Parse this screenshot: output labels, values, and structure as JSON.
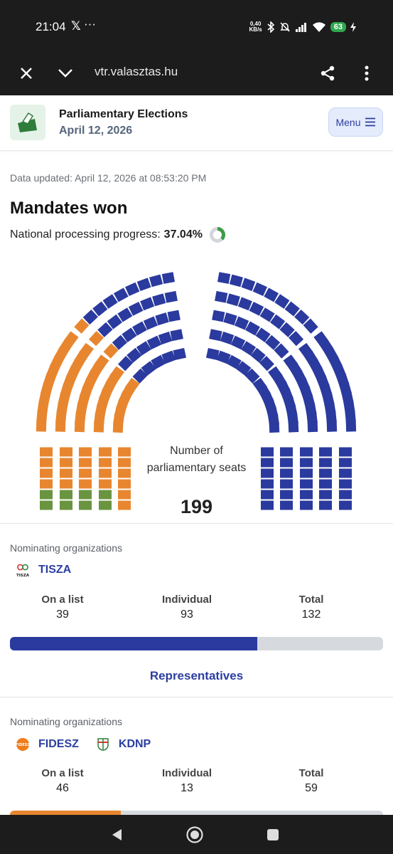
{
  "status_bar": {
    "time": "21:04",
    "x_app": "𝕏",
    "dots": "···",
    "net_speed_value": "0,40",
    "net_speed_unit": "KB/s",
    "battery": "63"
  },
  "browser": {
    "url": "vtr.valasztas.hu",
    "icons": [
      "close-icon",
      "chevron-down-icon",
      "share-icon",
      "more-vert-icon"
    ]
  },
  "header": {
    "title": "Parliamentary Elections",
    "date": "April 12, 2026",
    "menu_label": "Menu"
  },
  "updated": "Data updated: April 12, 2026 at 08:53:20 PM",
  "section_title": "Mandates won",
  "progress": {
    "label": "National processing progress:",
    "value": "37.04%",
    "fraction": 0.3704
  },
  "seat_chart": {
    "label": "Number of parliamentary seats",
    "total": "199",
    "colors": {
      "tisza": "#2b3a9e",
      "fidesz": "#e8862f",
      "kdnp": "#6a9440"
    }
  },
  "parties": [
    {
      "org_label": "Nominating organizations",
      "names": [
        "TISZA"
      ],
      "logo_texts": [
        "TISZA"
      ],
      "stats": [
        {
          "label": "On a list",
          "value": "39"
        },
        {
          "label": "Individual",
          "value": "93"
        },
        {
          "label": "Total",
          "value": "132"
        }
      ],
      "share": 0.6633,
      "color": "#2b3a9e",
      "link": "Representatives"
    },
    {
      "org_label": "Nominating organizations",
      "names": [
        "FIDESZ",
        "KDNP"
      ],
      "logo_texts": [
        "FIDESZ"
      ],
      "stats": [
        {
          "label": "On a list",
          "value": "46"
        },
        {
          "label": "Individual",
          "value": "13"
        },
        {
          "label": "Total",
          "value": "59"
        }
      ],
      "share": 0.2965,
      "color": "#e8862f"
    }
  ]
}
